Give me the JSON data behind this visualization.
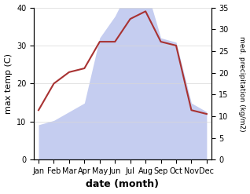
{
  "months": [
    "Jan",
    "Feb",
    "Mar",
    "Apr",
    "May",
    "Jun",
    "Jul",
    "Aug",
    "Sep",
    "Oct",
    "Nov",
    "Dec"
  ],
  "temperature": [
    13,
    20,
    23,
    24,
    31,
    31,
    37,
    39,
    31,
    30,
    13,
    12
  ],
  "precipitation": [
    8,
    9,
    11,
    13,
    28,
    33,
    40,
    40,
    28,
    27,
    13,
    11
  ],
  "temp_color": "#a83232",
  "precip_color_fill": "#c5cdf0",
  "title": "",
  "xlabel": "date (month)",
  "ylabel_left": "max temp (C)",
  "ylabel_right": "med. precipitation (kg/m2)",
  "ylim_left": [
    0,
    40
  ],
  "ylim_right": [
    0,
    35
  ],
  "yticks_left": [
    0,
    10,
    20,
    30,
    40
  ],
  "yticks_right": [
    0,
    5,
    10,
    15,
    20,
    25,
    30,
    35
  ],
  "background_color": "#ffffff",
  "figsize": [
    3.18,
    2.47
  ],
  "dpi": 100
}
